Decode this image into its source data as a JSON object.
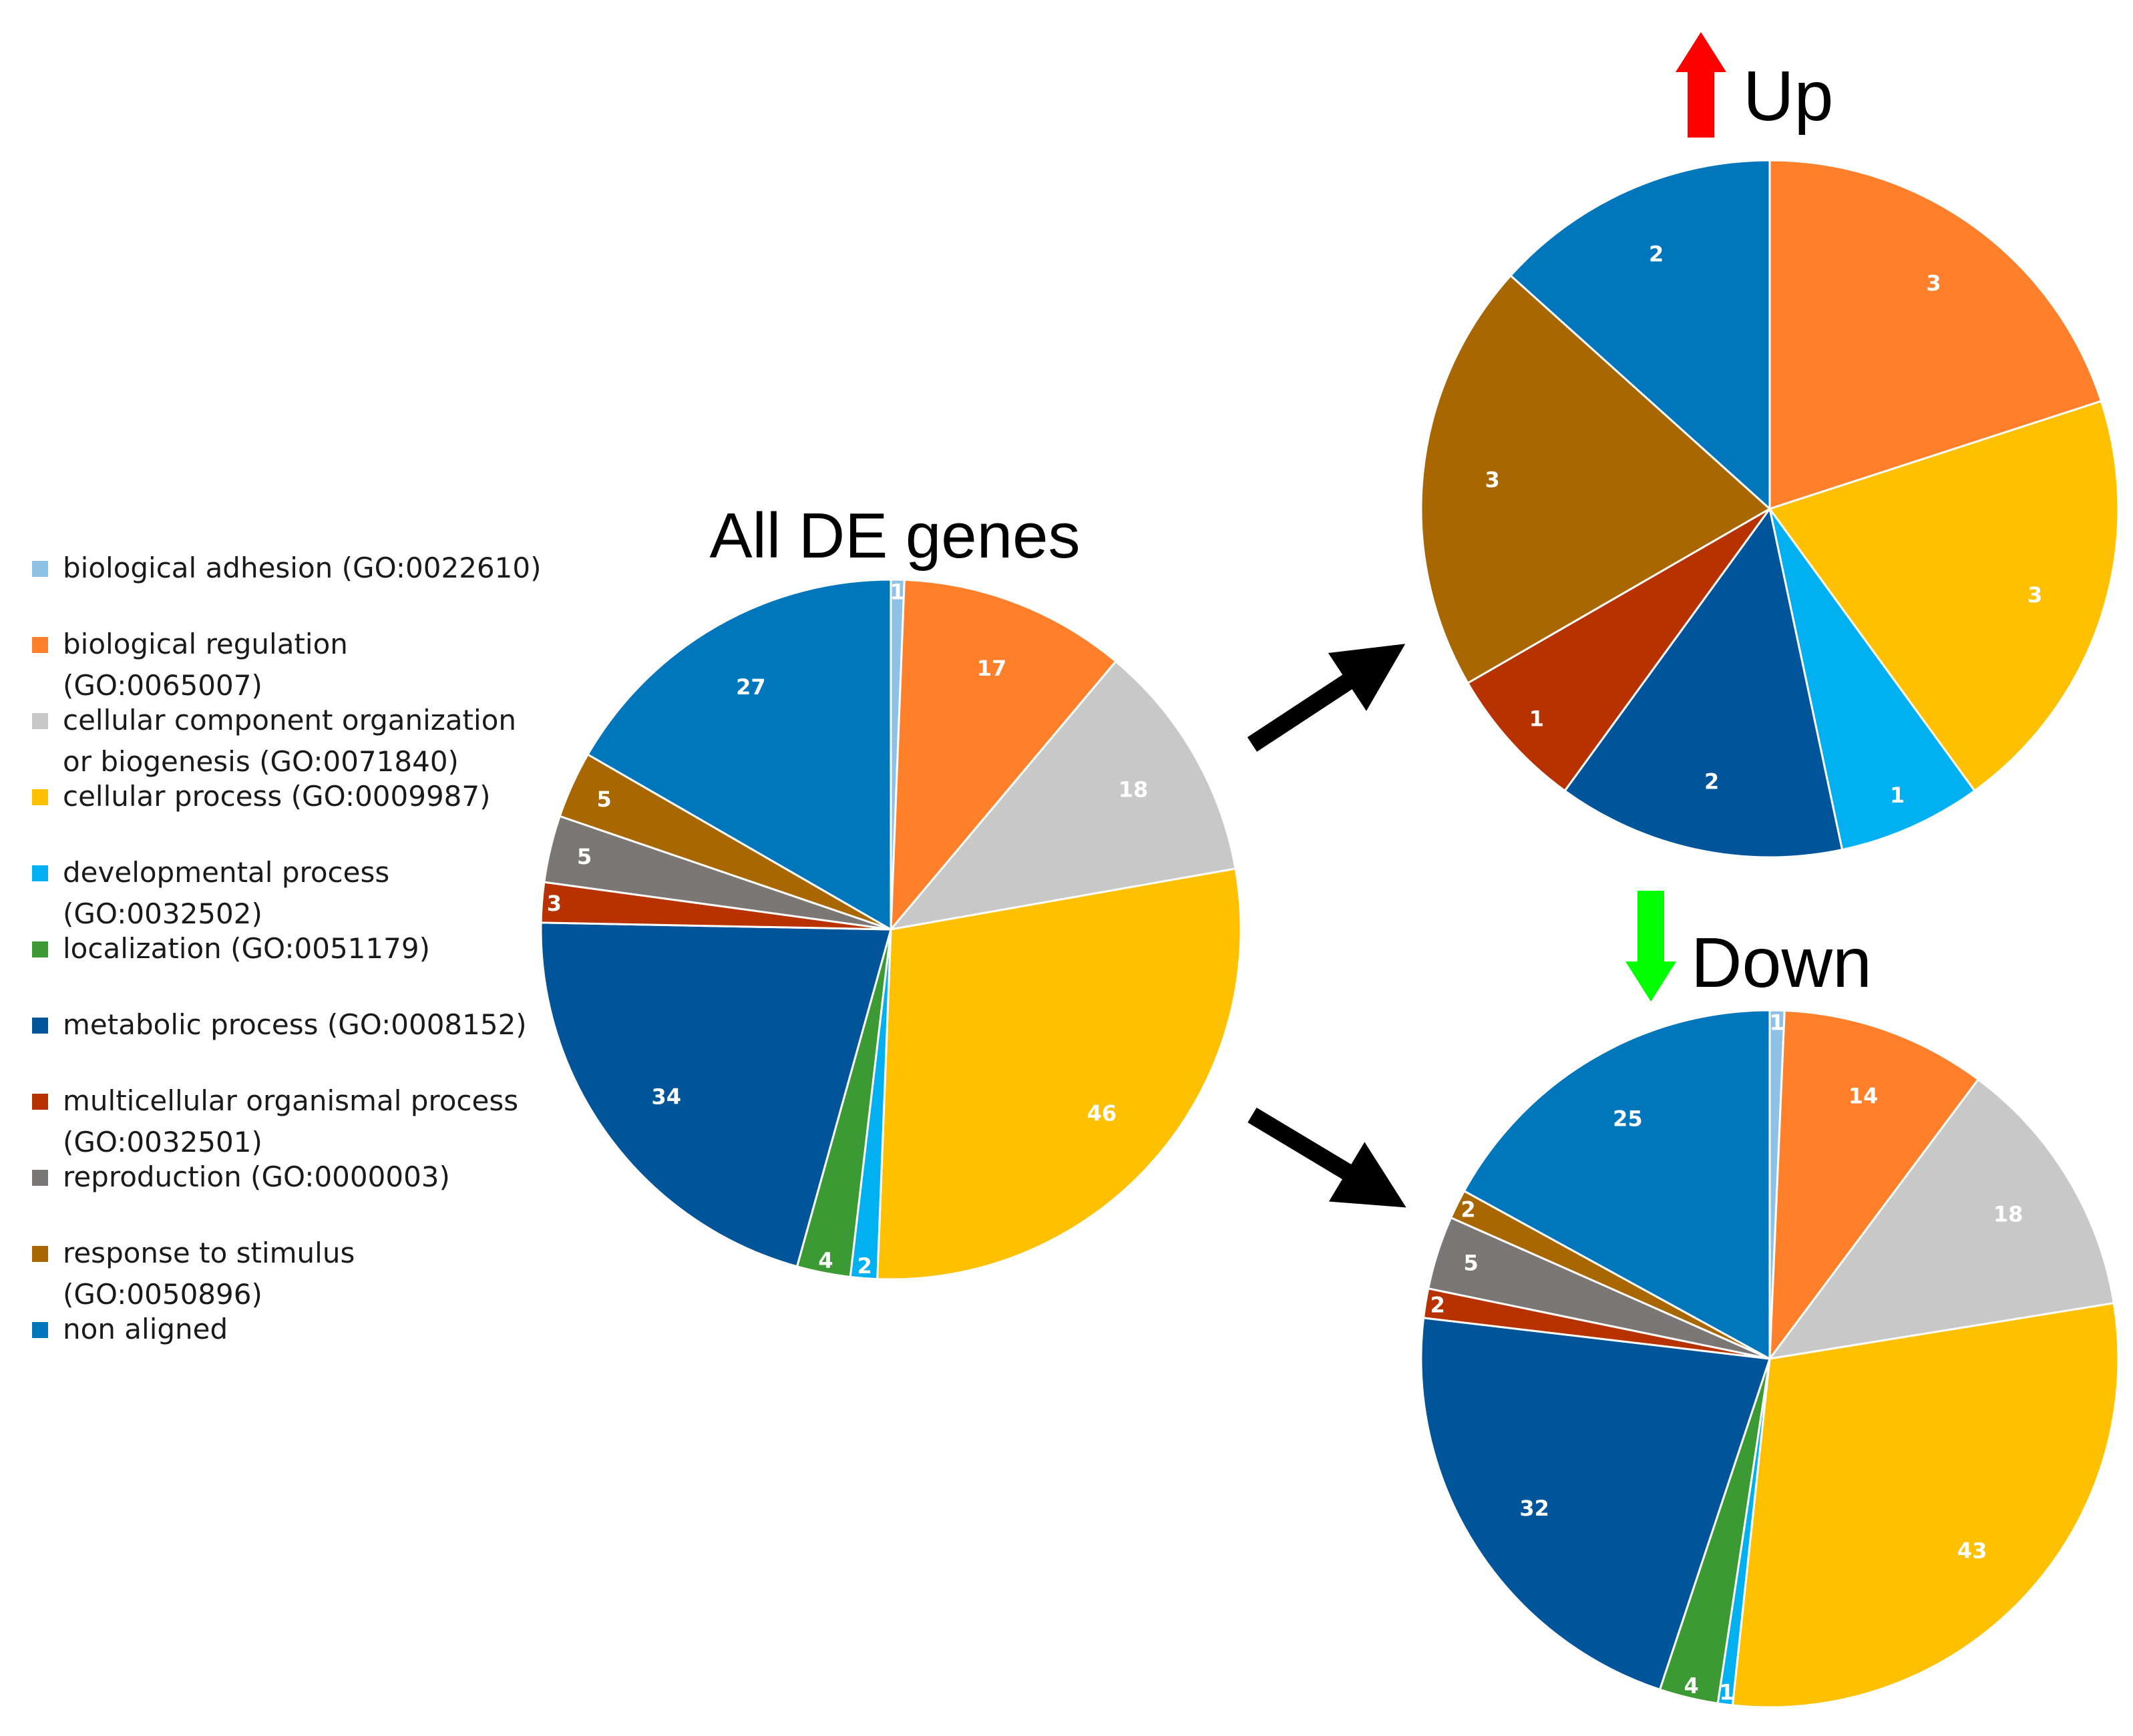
{
  "categories": [
    {
      "key": "biological_adhesion",
      "label": "biological adhesion (GO:0022610)",
      "color": "#8EC1E5"
    },
    {
      "key": "biological_regulation",
      "label": "biological regulation (GO:0065007)",
      "color": "#FF7F2A"
    },
    {
      "key": "cellular_component",
      "label": "cellular component organization or biogenesis (GO:0071840)",
      "color": "#C8C8C8"
    },
    {
      "key": "cellular_process",
      "label": "cellular process (GO:0009987)",
      "color": "#FFC000"
    },
    {
      "key": "developmental_process",
      "label": "developmental process (GO:0032502)",
      "color": "#00B0F0"
    },
    {
      "key": "localization",
      "label": "localization (GO:0051179)",
      "color": "#3C9A35"
    },
    {
      "key": "metabolic_process",
      "label": "metabolic process (GO:0008152)",
      "color": "#005499"
    },
    {
      "key": "multicellular_process",
      "label": "multicellular organismal process (GO:0032501)",
      "color": "#B83200"
    },
    {
      "key": "reproduction",
      "label": "reproduction (GO:0000003)",
      "color": "#7C7777"
    },
    {
      "key": "response_to_stimulus",
      "label": "response to stimulus (GO:0050896)",
      "color": "#A86700"
    },
    {
      "key": "non_aligned",
      "label": "non aligned",
      "color": "#0077BC"
    }
  ],
  "chart_data": [
    {
      "type": "pie",
      "title": "All DE genes",
      "categories": [
        "biological adhesion (GO:0022610)",
        "biological regulation (GO:0065007)",
        "cellular component organization or biogenesis (GO:0071840)",
        "cellular process (GO:0009987)",
        "developmental process (GO:0032502)",
        "localization (GO:0051179)",
        "metabolic process (GO:0008152)",
        "multicellular organismal process (GO:0032501)",
        "reproduction (GO:0000003)",
        "response to stimulus (GO:0050896)",
        "non aligned"
      ],
      "values": [
        1,
        17,
        18,
        46,
        2,
        4,
        34,
        3,
        5,
        5,
        27
      ]
    },
    {
      "type": "pie",
      "title": "Up",
      "arrow": "up",
      "arrow_color": "#FF0000",
      "categories": [
        "biological adhesion (GO:0022610)",
        "biological regulation (GO:0065007)",
        "cellular component organization or biogenesis (GO:0071840)",
        "cellular process (GO:0009987)",
        "developmental process (GO:0032502)",
        "localization (GO:0051179)",
        "metabolic process (GO:0008152)",
        "multicellular organismal process (GO:0032501)",
        "reproduction (GO:0000003)",
        "response to stimulus (GO:0050896)",
        "non aligned"
      ],
      "values": [
        0,
        3,
        0,
        3,
        1,
        0,
        2,
        1,
        0,
        3,
        2
      ]
    },
    {
      "type": "pie",
      "title": "Down",
      "arrow": "down",
      "arrow_color": "#00FF00",
      "categories": [
        "biological adhesion (GO:0022610)",
        "biological regulation (GO:0065007)",
        "cellular component organization or biogenesis (GO:0071840)",
        "cellular process (GO:0009987)",
        "developmental process (GO:0032502)",
        "localization (GO:0051179)",
        "metabolic process (GO:0008152)",
        "multicellular organismal process (GO:0032501)",
        "reproduction (GO:0000003)",
        "response to stimulus (GO:0050896)",
        "non aligned"
      ],
      "values": [
        1,
        14,
        18,
        43,
        1,
        4,
        32,
        2,
        5,
        2,
        25
      ]
    }
  ]
}
